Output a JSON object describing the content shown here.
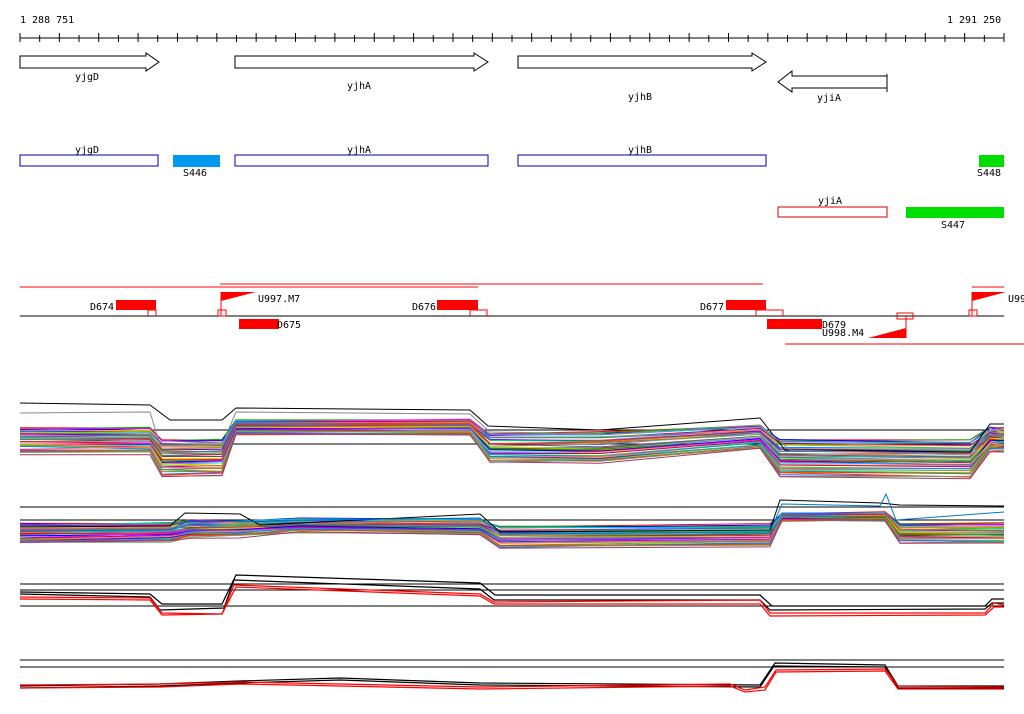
{
  "ruler": {
    "start_label": "1 288 751",
    "end_label": "1 291 250"
  },
  "genes": [
    {
      "name": "yjgD",
      "strand": "+"
    },
    {
      "name": "yjhA",
      "strand": "+"
    },
    {
      "name": "yjhB",
      "strand": "+"
    },
    {
      "name": "yjiA",
      "strand": "-"
    }
  ],
  "cds_plus": [
    {
      "label": "yjgD",
      "color": "#0000aa"
    },
    {
      "label": "yjhA",
      "color": "#0000aa"
    },
    {
      "label": "yjhB",
      "color": "#0000aa"
    }
  ],
  "cds_minus": [
    {
      "label": "yjiA",
      "color": "#cc0000"
    }
  ],
  "segments": [
    {
      "label": "S446",
      "color": "#0099ee"
    },
    {
      "label": "S448",
      "color": "#00dd00"
    },
    {
      "label": "S447",
      "color": "#00dd00"
    }
  ],
  "features_top": [
    {
      "label": "D674"
    },
    {
      "label": "D676"
    },
    {
      "label": "D677"
    }
  ],
  "features_bottom": [
    {
      "label": "D675"
    },
    {
      "label": "D679"
    }
  ],
  "promoters": [
    {
      "label": "U997.M7"
    },
    {
      "label": "U998.M4"
    },
    {
      "label": "U99"
    }
  ],
  "colors": {
    "feature": "#ff0000",
    "line": "#000000",
    "highlight": "#ff0000"
  }
}
